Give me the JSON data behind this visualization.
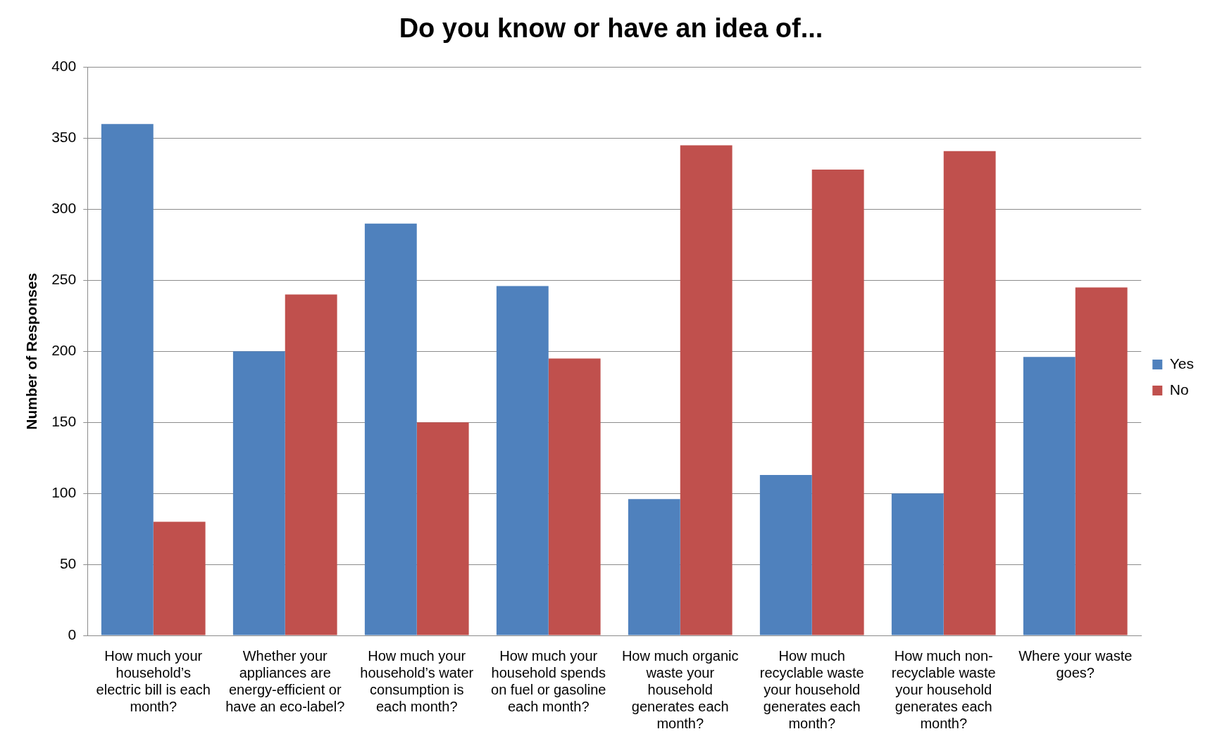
{
  "chart_data": {
    "type": "bar",
    "title": "Do you know or have an idea of...",
    "ylabel": "Number of Responses",
    "categories": [
      "How much your household’s electric bill is each month?",
      "Whether your appliances are energy-efficient or have an eco-label?",
      "How much your household’s water consumption is each month?",
      "How much your household spends on fuel or gasoline each month?",
      "How much organic waste your household generates each month?",
      "How much recyclable waste your household generates each month?",
      "How much non-recyclable waste your household generates each month?",
      "Where your waste goes?"
    ],
    "series": [
      {
        "name": "Yes",
        "color": "#4f81bd",
        "values": [
          360,
          200,
          290,
          246,
          96,
          113,
          100,
          196
        ]
      },
      {
        "name": "No",
        "color": "#c0504d",
        "values": [
          80,
          240,
          150,
          195,
          345,
          328,
          341,
          245
        ]
      }
    ],
    "ylim": [
      0,
      400
    ],
    "yticks": [
      0,
      50,
      100,
      150,
      200,
      250,
      300,
      350,
      400
    ],
    "grid": "y",
    "legend": "right"
  }
}
